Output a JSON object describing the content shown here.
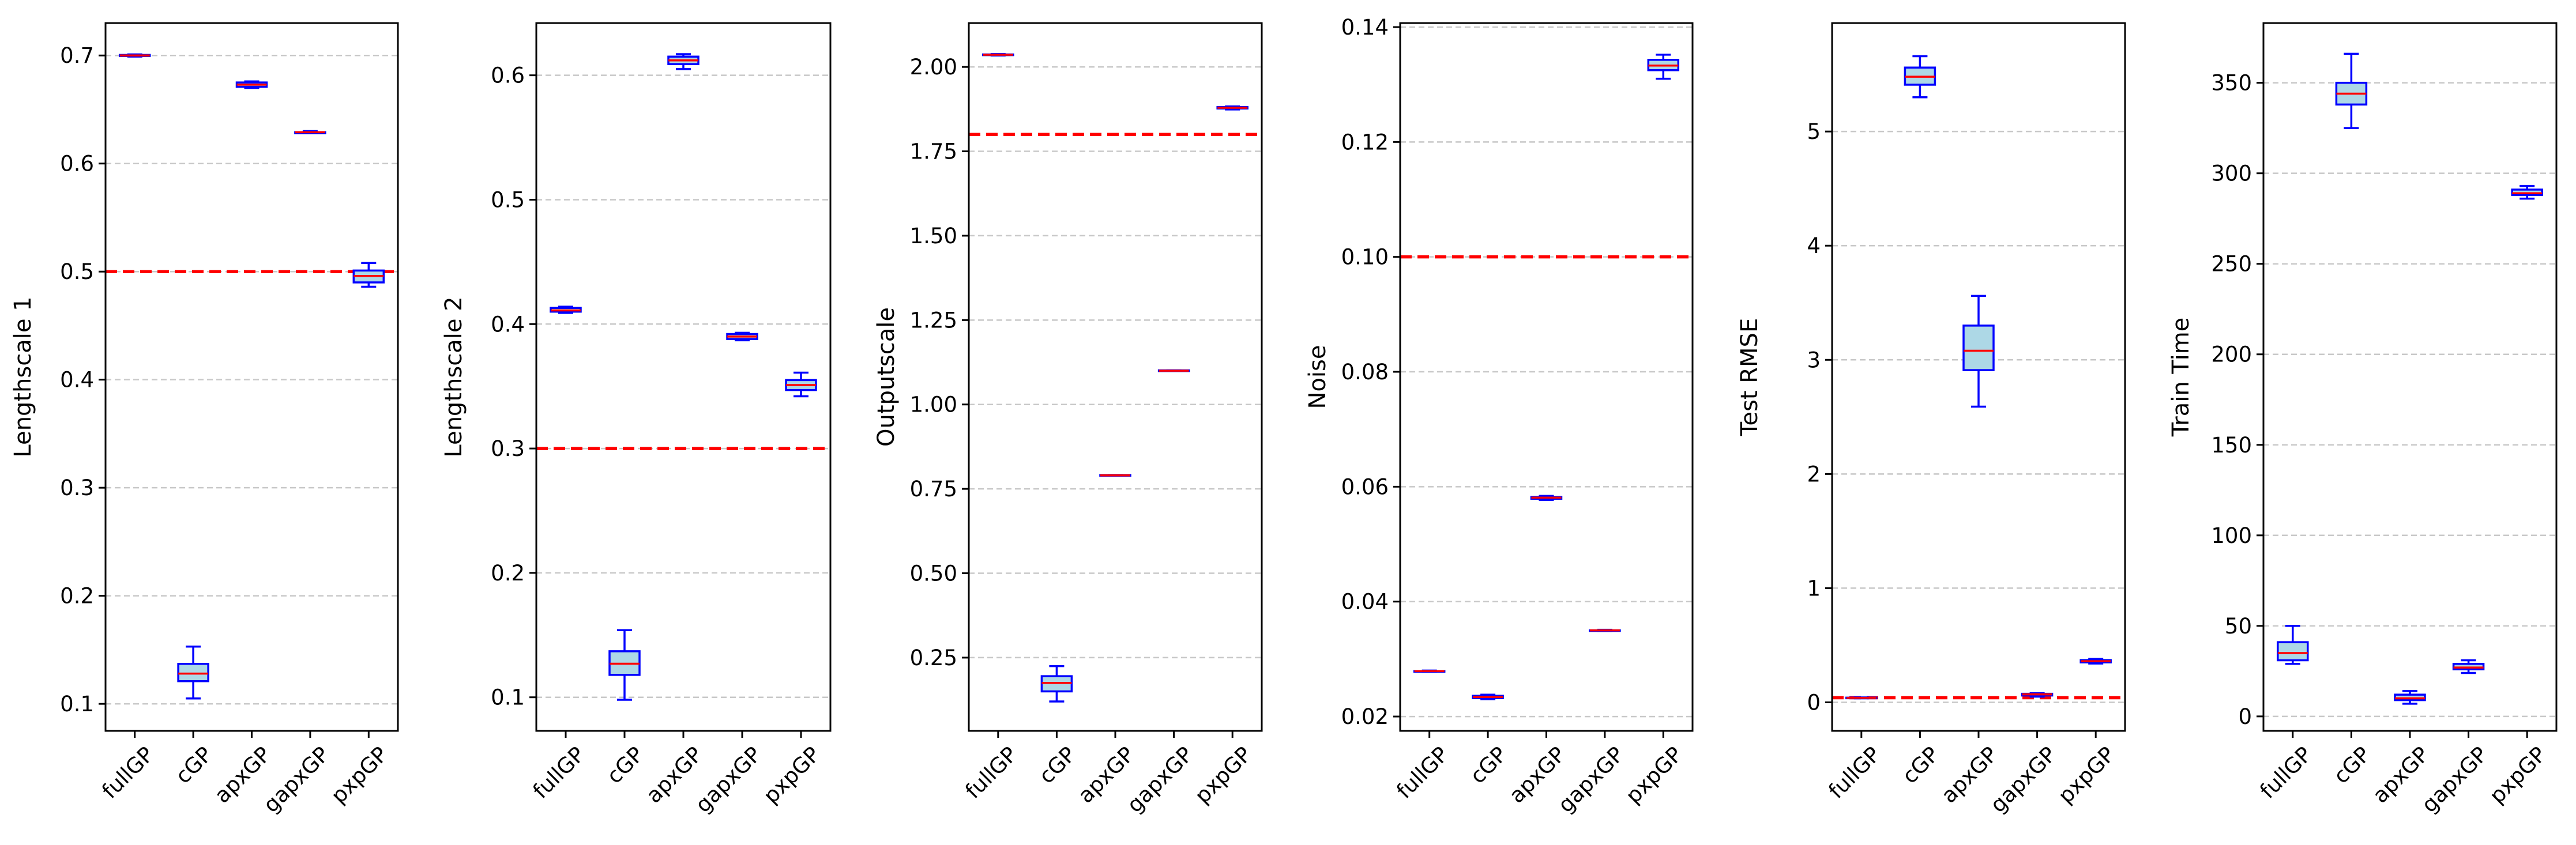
{
  "colors": {
    "box_fill": "#add8e6",
    "box_edge": "#0000ff",
    "median": "#ff0000",
    "reference_line": "#ff0000",
    "grid": "#c8c8c8"
  },
  "chart_data": [
    {
      "type": "box",
      "ylabel": "Lengthscale 1",
      "categories": [
        "fullGP",
        "cGP",
        "apxGP",
        "gapxGP",
        "pxpGP"
      ],
      "ylim": [
        0.075,
        0.73
      ],
      "yticks": [
        0.1,
        0.2,
        0.3,
        0.4,
        0.5,
        0.6,
        0.7
      ],
      "ytick_labels": [
        "0.1",
        "0.2",
        "0.3",
        "0.4",
        "0.5",
        "0.6",
        "0.7"
      ],
      "reference_line": 0.5,
      "grid": "y",
      "boxes": [
        {
          "whislo": 0.699,
          "q1": 0.6995,
          "med": 0.7,
          "q3": 0.7005,
          "whishi": 0.701
        },
        {
          "whislo": 0.105,
          "q1": 0.121,
          "med": 0.128,
          "q3": 0.137,
          "whishi": 0.153
        },
        {
          "whislo": 0.67,
          "q1": 0.671,
          "med": 0.673,
          "q3": 0.675,
          "whishi": 0.676
        },
        {
          "whislo": 0.628,
          "q1": 0.628,
          "med": 0.629,
          "q3": 0.629,
          "whishi": 0.63
        },
        {
          "whislo": 0.486,
          "q1": 0.49,
          "med": 0.496,
          "q3": 0.501,
          "whishi": 0.508
        }
      ]
    },
    {
      "type": "box",
      "ylabel": "Lengthscale 2",
      "categories": [
        "fullGP",
        "cGP",
        "apxGP",
        "gapxGP",
        "pxpGP"
      ],
      "ylim": [
        0.073,
        0.642
      ],
      "yticks": [
        0.1,
        0.2,
        0.3,
        0.4,
        0.5,
        0.6
      ],
      "ytick_labels": [
        "0.1",
        "0.2",
        "0.3",
        "0.4",
        "0.5",
        "0.6"
      ],
      "reference_line": 0.3,
      "grid": "y",
      "boxes": [
        {
          "whislo": 0.409,
          "q1": 0.41,
          "med": 0.411,
          "q3": 0.413,
          "whishi": 0.414
        },
        {
          "whislo": 0.098,
          "q1": 0.118,
          "med": 0.127,
          "q3": 0.137,
          "whishi": 0.154
        },
        {
          "whislo": 0.605,
          "q1": 0.609,
          "med": 0.612,
          "q3": 0.615,
          "whishi": 0.617
        },
        {
          "whislo": 0.387,
          "q1": 0.388,
          "med": 0.39,
          "q3": 0.392,
          "whishi": 0.393
        },
        {
          "whislo": 0.342,
          "q1": 0.347,
          "med": 0.351,
          "q3": 0.355,
          "whishi": 0.361
        }
      ]
    },
    {
      "type": "box",
      "ylabel": "Outputscale",
      "categories": [
        "fullGP",
        "cGP",
        "apxGP",
        "gapxGP",
        "pxpGP"
      ],
      "ylim": [
        0.033,
        2.13
      ],
      "yticks": [
        0.25,
        0.5,
        0.75,
        1.0,
        1.25,
        1.5,
        1.75,
        2.0
      ],
      "ytick_labels": [
        "0.25",
        "0.50",
        "0.75",
        "1.00",
        "1.25",
        "1.50",
        "1.75",
        "2.00"
      ],
      "reference_line": 1.8,
      "grid": "y",
      "boxes": [
        {
          "whislo": 2.034,
          "q1": 2.035,
          "med": 2.036,
          "q3": 2.037,
          "whishi": 2.038
        },
        {
          "whislo": 0.12,
          "q1": 0.15,
          "med": 0.175,
          "q3": 0.195,
          "whishi": 0.225
        },
        {
          "whislo": 0.789,
          "q1": 0.789,
          "med": 0.79,
          "q3": 0.791,
          "whishi": 0.791
        },
        {
          "whislo": 1.099,
          "q1": 1.099,
          "med": 1.1,
          "q3": 1.101,
          "whishi": 1.101
        },
        {
          "whislo": 1.874,
          "q1": 1.877,
          "med": 1.879,
          "q3": 1.881,
          "whishi": 1.883
        }
      ]
    },
    {
      "type": "box",
      "ylabel": "Noise",
      "categories": [
        "fullGP",
        "cGP",
        "apxGP",
        "gapxGP",
        "pxpGP"
      ],
      "ylim": [
        0.0175,
        0.1407
      ],
      "yticks": [
        0.02,
        0.04,
        0.06,
        0.08,
        0.1,
        0.12,
        0.14
      ],
      "ytick_labels": [
        "0.02",
        "0.04",
        "0.06",
        "0.08",
        "0.10",
        "0.12",
        "0.14"
      ],
      "reference_line": 0.1,
      "grid": "y",
      "boxes": [
        {
          "whislo": 0.0278,
          "q1": 0.0278,
          "med": 0.0279,
          "q3": 0.0279,
          "whishi": 0.028
        },
        {
          "whislo": 0.023,
          "q1": 0.0232,
          "med": 0.0234,
          "q3": 0.0236,
          "whishi": 0.0238
        },
        {
          "whislo": 0.0577,
          "q1": 0.0579,
          "med": 0.0581,
          "q3": 0.0582,
          "whishi": 0.0584
        },
        {
          "whislo": 0.0349,
          "q1": 0.0349,
          "med": 0.035,
          "q3": 0.035,
          "whishi": 0.0351
        },
        {
          "whislo": 0.131,
          "q1": 0.1325,
          "med": 0.1333,
          "q3": 0.1343,
          "whishi": 0.1352
        }
      ]
    },
    {
      "type": "box",
      "ylabel": "Test RMSE",
      "categories": [
        "fullGP",
        "cGP",
        "apxGP",
        "gapxGP",
        "pxpGP"
      ],
      "ylim": [
        -0.25,
        5.95
      ],
      "yticks": [
        0,
        1,
        2,
        3,
        4,
        5
      ],
      "ytick_labels": [
        "0",
        "1",
        "2",
        "3",
        "4",
        "5"
      ],
      "reference_line": 0.04,
      "grid": "y",
      "boxes": [
        {
          "whislo": 0.035,
          "q1": 0.037,
          "med": 0.039,
          "q3": 0.041,
          "whishi": 0.043
        },
        {
          "whislo": 5.3,
          "q1": 5.41,
          "med": 5.48,
          "q3": 5.56,
          "whishi": 5.66
        },
        {
          "whislo": 2.59,
          "q1": 2.91,
          "med": 3.08,
          "q3": 3.3,
          "whishi": 3.56
        },
        {
          "whislo": 0.05,
          "q1": 0.06,
          "med": 0.07,
          "q3": 0.075,
          "whishi": 0.08
        },
        {
          "whislo": 0.34,
          "q1": 0.35,
          "med": 0.36,
          "q3": 0.37,
          "whishi": 0.38
        }
      ]
    },
    {
      "type": "box",
      "ylabel": "Train Time",
      "categories": [
        "fullGP",
        "cGP",
        "apxGP",
        "gapxGP",
        "pxpGP"
      ],
      "ylim": [
        -8,
        383
      ],
      "yticks": [
        0,
        50,
        100,
        150,
        200,
        250,
        300,
        350
      ],
      "ytick_labels": [
        "0",
        "50",
        "100",
        "150",
        "200",
        "250",
        "300",
        "350"
      ],
      "reference_line": null,
      "grid": "y",
      "boxes": [
        {
          "whislo": 29,
          "q1": 31,
          "med": 35,
          "q3": 41,
          "whishi": 50
        },
        {
          "whislo": 325,
          "q1": 338,
          "med": 344,
          "q3": 350,
          "whishi": 366
        },
        {
          "whislo": 7,
          "q1": 9,
          "med": 10,
          "q3": 12,
          "whishi": 14
        },
        {
          "whislo": 24,
          "q1": 26,
          "med": 27,
          "q3": 29,
          "whishi": 31
        },
        {
          "whislo": 286,
          "q1": 288,
          "med": 289,
          "q3": 291,
          "whishi": 293
        }
      ]
    }
  ]
}
